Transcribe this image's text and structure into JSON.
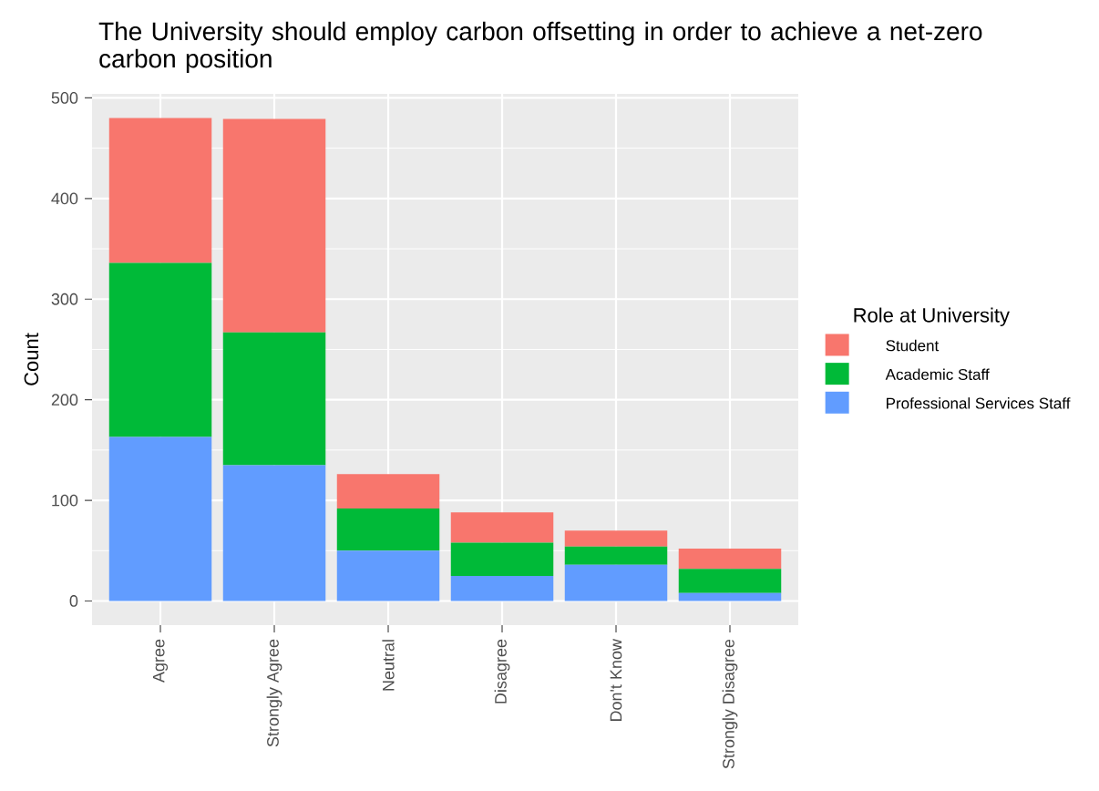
{
  "chart_data": {
    "type": "bar",
    "stacked": true,
    "title": "The University should employ carbon offsetting in order to achieve a net-zero carbon position",
    "ylabel": "Count",
    "legend_title": "Role at University",
    "categories": [
      "Agree",
      "Strongly Agree",
      "Neutral",
      "Disagree",
      "Don't Know",
      "Strongly Disagree"
    ],
    "series": [
      {
        "name": "Professional Services Staff",
        "color": "#619cff",
        "values": [
          163,
          135,
          50,
          25,
          36,
          8
        ]
      },
      {
        "name": "Academic Staff",
        "color": "#00ba38",
        "values": [
          173,
          132,
          42,
          33,
          18,
          24
        ]
      },
      {
        "name": "Student",
        "color": "#f8766d",
        "values": [
          144,
          212,
          34,
          30,
          16,
          20
        ]
      }
    ],
    "ylim": [
      -24,
      504
    ],
    "yticks": [
      0,
      100,
      200,
      300,
      400,
      500
    ],
    "grid": true,
    "legend": "right"
  }
}
